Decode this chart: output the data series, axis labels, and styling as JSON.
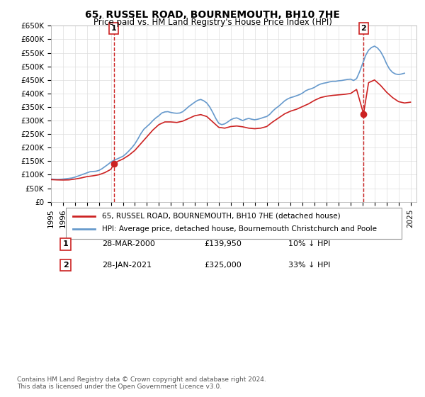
{
  "title": "65, RUSSEL ROAD, BOURNEMOUTH, BH10 7HE",
  "subtitle": "Price paid vs. HM Land Registry's House Price Index (HPI)",
  "ylabel": "",
  "xlabel": "",
  "ylim": [
    0,
    650000
  ],
  "yticks": [
    0,
    50000,
    100000,
    150000,
    200000,
    250000,
    300000,
    350000,
    400000,
    450000,
    500000,
    550000,
    600000,
    650000
  ],
  "ytick_labels": [
    "£0",
    "£50K",
    "£100K",
    "£150K",
    "£200K",
    "£250K",
    "£300K",
    "£350K",
    "£400K",
    "£450K",
    "£500K",
    "£550K",
    "£600K",
    "£650K"
  ],
  "xlim_start": 1995.0,
  "xlim_end": 2025.5,
  "hpi_color": "#6699cc",
  "price_color": "#cc2222",
  "background_color": "#ffffff",
  "grid_color": "#dddddd",
  "legend_label_price": "65, RUSSEL ROAD, BOURNEMOUTH, BH10 7HE (detached house)",
  "legend_label_hpi": "HPI: Average price, detached house, Bournemouth Christchurch and Poole",
  "transaction1_date": "28-MAR-2000",
  "transaction1_price": "£139,950",
  "transaction1_hpi": "10% ↓ HPI",
  "transaction1_year": 2000.25,
  "transaction1_value": 139950,
  "transaction2_date": "28-JAN-2021",
  "transaction2_price": "£325,000",
  "transaction2_hpi": "33% ↓ HPI",
  "transaction2_year": 2021.08,
  "transaction2_value": 325000,
  "footer": "Contains HM Land Registry data © Crown copyright and database right 2024.\nThis data is licensed under the Open Government Licence v3.0.",
  "hpi_data": {
    "years": [
      1995.0,
      1995.25,
      1995.5,
      1995.75,
      1996.0,
      1996.25,
      1996.5,
      1996.75,
      1997.0,
      1997.25,
      1997.5,
      1997.75,
      1998.0,
      1998.25,
      1998.5,
      1998.75,
      1999.0,
      1999.25,
      1999.5,
      1999.75,
      2000.0,
      2000.25,
      2000.5,
      2000.75,
      2001.0,
      2001.25,
      2001.5,
      2001.75,
      2002.0,
      2002.25,
      2002.5,
      2002.75,
      2003.0,
      2003.25,
      2003.5,
      2003.75,
      2004.0,
      2004.25,
      2004.5,
      2004.75,
      2005.0,
      2005.25,
      2005.5,
      2005.75,
      2006.0,
      2006.25,
      2006.5,
      2006.75,
      2007.0,
      2007.25,
      2007.5,
      2007.75,
      2008.0,
      2008.25,
      2008.5,
      2008.75,
      2009.0,
      2009.25,
      2009.5,
      2009.75,
      2010.0,
      2010.25,
      2010.5,
      2010.75,
      2011.0,
      2011.25,
      2011.5,
      2011.75,
      2012.0,
      2012.25,
      2012.5,
      2012.75,
      2013.0,
      2013.25,
      2013.5,
      2013.75,
      2014.0,
      2014.25,
      2014.5,
      2014.75,
      2015.0,
      2015.25,
      2015.5,
      2015.75,
      2016.0,
      2016.25,
      2016.5,
      2016.75,
      2017.0,
      2017.25,
      2017.5,
      2017.75,
      2018.0,
      2018.25,
      2018.5,
      2018.75,
      2019.0,
      2019.25,
      2019.5,
      2019.75,
      2020.0,
      2020.25,
      2020.5,
      2020.75,
      2021.0,
      2021.25,
      2021.5,
      2021.75,
      2022.0,
      2022.25,
      2022.5,
      2022.75,
      2023.0,
      2023.25,
      2023.5,
      2023.75,
      2024.0,
      2024.25,
      2024.5
    ],
    "values": [
      84000,
      83000,
      82500,
      83000,
      84000,
      85000,
      86500,
      88000,
      91000,
      95000,
      99000,
      103000,
      107000,
      111000,
      112000,
      113000,
      116000,
      122000,
      130000,
      138000,
      147000,
      153000,
      158000,
      163000,
      168000,
      177000,
      188000,
      200000,
      214000,
      232000,
      252000,
      268000,
      278000,
      288000,
      300000,
      310000,
      318000,
      328000,
      332000,
      333000,
      330000,
      328000,
      327000,
      328000,
      333000,
      342000,
      352000,
      360000,
      368000,
      375000,
      378000,
      373000,
      365000,
      350000,
      330000,
      308000,
      290000,
      285000,
      288000,
      295000,
      303000,
      308000,
      310000,
      305000,
      300000,
      305000,
      308000,
      305000,
      303000,
      305000,
      308000,
      312000,
      315000,
      323000,
      335000,
      345000,
      353000,
      363000,
      373000,
      380000,
      385000,
      388000,
      392000,
      396000,
      402000,
      410000,
      415000,
      418000,
      423000,
      430000,
      435000,
      438000,
      440000,
      443000,
      445000,
      445000,
      447000,
      448000,
      450000,
      452000,
      453000,
      448000,
      455000,
      480000,
      510000,
      540000,
      560000,
      570000,
      575000,
      568000,
      555000,
      535000,
      510000,
      490000,
      478000,
      472000,
      470000,
      472000,
      475000
    ]
  },
  "price_data": {
    "years": [
      1995.0,
      1995.5,
      1996.0,
      1996.5,
      1997.0,
      1997.5,
      1998.0,
      1998.5,
      1999.0,
      1999.5,
      2000.0,
      2000.25,
      2000.5,
      2001.0,
      2001.5,
      2002.0,
      2002.5,
      2003.0,
      2003.5,
      2004.0,
      2004.5,
      2005.0,
      2005.5,
      2006.0,
      2006.5,
      2007.0,
      2007.5,
      2008.0,
      2008.5,
      2009.0,
      2009.5,
      2010.0,
      2010.5,
      2011.0,
      2011.5,
      2012.0,
      2012.5,
      2013.0,
      2013.5,
      2014.0,
      2014.5,
      2015.0,
      2015.5,
      2016.0,
      2016.5,
      2017.0,
      2017.5,
      2018.0,
      2018.5,
      2019.0,
      2019.5,
      2020.0,
      2020.5,
      2021.08,
      2021.5,
      2022.0,
      2022.5,
      2023.0,
      2023.5,
      2024.0,
      2024.5,
      2025.0
    ],
    "values": [
      82000,
      81000,
      80500,
      81000,
      84000,
      88000,
      93000,
      96000,
      100000,
      108000,
      120000,
      139950,
      148000,
      158000,
      172000,
      190000,
      215000,
      240000,
      265000,
      285000,
      295000,
      295000,
      293000,
      298000,
      308000,
      318000,
      322000,
      315000,
      295000,
      275000,
      272000,
      278000,
      280000,
      277000,
      272000,
      270000,
      272000,
      278000,
      295000,
      310000,
      325000,
      335000,
      342000,
      352000,
      362000,
      375000,
      385000,
      390000,
      393000,
      395000,
      397000,
      400000,
      415000,
      325000,
      440000,
      450000,
      430000,
      405000,
      385000,
      370000,
      365000,
      368000
    ]
  }
}
